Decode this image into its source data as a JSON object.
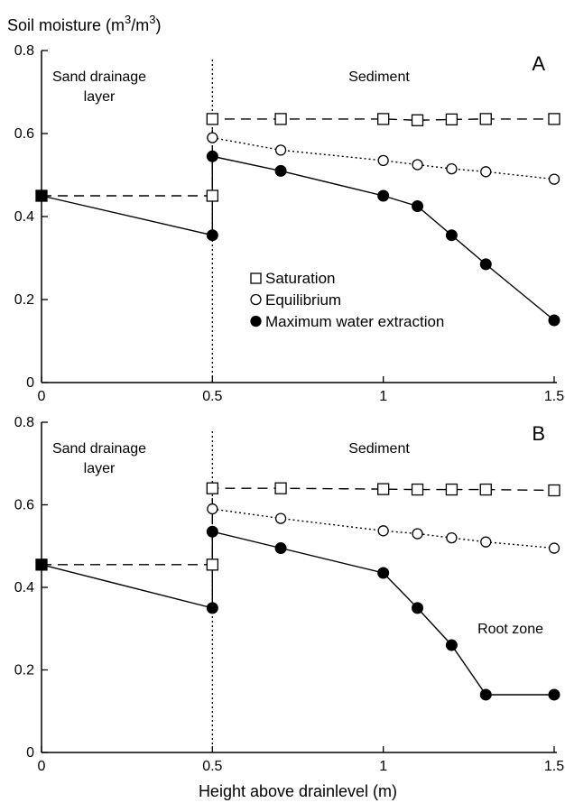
{
  "figure": {
    "ylabel_prefix": "Soil moisture (m",
    "ylabel_sup1": "3",
    "ylabel_mid": "/m",
    "ylabel_sup2": "3",
    "ylabel_suffix": ")",
    "xlabel": "Height above drainlevel (m)",
    "legend": {
      "saturation": "Saturation",
      "equilibrium": "Equilibrium",
      "max_extraction": "Maximum water extraction"
    },
    "marker_colors": {
      "line": "#000000",
      "fill": "#000000",
      "open": "#ffffff"
    }
  },
  "chart_data": [
    {
      "type": "line",
      "panel": "A",
      "xlim": [
        0,
        1.5
      ],
      "ylim": [
        0,
        0.8
      ],
      "x_ticks": [
        0,
        0.5,
        1,
        1.5
      ],
      "y_ticks": [
        0,
        0.2,
        0.4,
        0.6,
        0.8
      ],
      "y_tick_labels": [
        "0",
        "0.2",
        "0.4",
        "0.6",
        "0.8"
      ],
      "x_tick_labels": [
        "0",
        "0.5",
        "1",
        "1.5"
      ],
      "vline_x": 0.5,
      "annotations": {
        "left": [
          "Sand drainage",
          "layer"
        ],
        "right": [
          "Sediment"
        ]
      },
      "series": [
        {
          "name": "Saturation",
          "style": "dashed",
          "marker": "square-open",
          "x": [
            0,
            0.5,
            0.5,
            0.7,
            1.0,
            1.1,
            1.2,
            1.3,
            1.5
          ],
          "y": [
            0.45,
            0.45,
            0.635,
            0.635,
            0.635,
            0.632,
            0.634,
            0.635,
            0.635
          ]
        },
        {
          "name": "Equilibrium",
          "style": "dotted",
          "marker": "circle-open",
          "x": [
            0.5,
            0.7,
            1.0,
            1.1,
            1.2,
            1.3,
            1.5
          ],
          "y": [
            0.59,
            0.56,
            0.535,
            0.525,
            0.515,
            0.508,
            0.49
          ]
        },
        {
          "name": "Maximum water extraction",
          "style": "solid",
          "marker": "circle-filled",
          "x": [
            0,
            0.5,
            0.5,
            0.7,
            1.0,
            1.1,
            1.2,
            1.3,
            1.5
          ],
          "y": [
            0.45,
            0.355,
            0.545,
            0.51,
            0.45,
            0.425,
            0.355,
            0.285,
            0.15
          ]
        }
      ]
    },
    {
      "type": "line",
      "panel": "B",
      "xlim": [
        0,
        1.5
      ],
      "ylim": [
        0,
        0.8
      ],
      "x_ticks": [
        0,
        0.5,
        1,
        1.5
      ],
      "y_ticks": [
        0,
        0.2,
        0.4,
        0.6,
        0.8
      ],
      "y_tick_labels": [
        "0",
        "0.2",
        "0.4",
        "0.6",
        "0.8"
      ],
      "x_tick_labels": [
        "0",
        "0.5",
        "1",
        "1.5"
      ],
      "vline_x": 0.5,
      "annotations": {
        "left": [
          "Sand drainage",
          "layer"
        ],
        "right": [
          "Sediment"
        ],
        "extra": "Root zone"
      },
      "series": [
        {
          "name": "Saturation",
          "style": "dashed",
          "marker": "square-open",
          "x": [
            0,
            0.5,
            0.5,
            0.7,
            1.0,
            1.1,
            1.2,
            1.3,
            1.5
          ],
          "y": [
            0.455,
            0.455,
            0.64,
            0.64,
            0.638,
            0.637,
            0.637,
            0.637,
            0.635
          ]
        },
        {
          "name": "Equilibrium",
          "style": "dotted",
          "marker": "circle-open",
          "x": [
            0.5,
            0.7,
            1.0,
            1.1,
            1.2,
            1.3,
            1.5
          ],
          "y": [
            0.59,
            0.567,
            0.537,
            0.53,
            0.52,
            0.51,
            0.495
          ]
        },
        {
          "name": "Maximum water extraction",
          "style": "solid",
          "marker": "circle-filled",
          "x": [
            0,
            0.5,
            0.5,
            0.7,
            1.0,
            1.1,
            1.2,
            1.3,
            1.5
          ],
          "y": [
            0.455,
            0.35,
            0.535,
            0.495,
            0.435,
            0.35,
            0.26,
            0.14,
            0.14
          ]
        }
      ]
    }
  ]
}
